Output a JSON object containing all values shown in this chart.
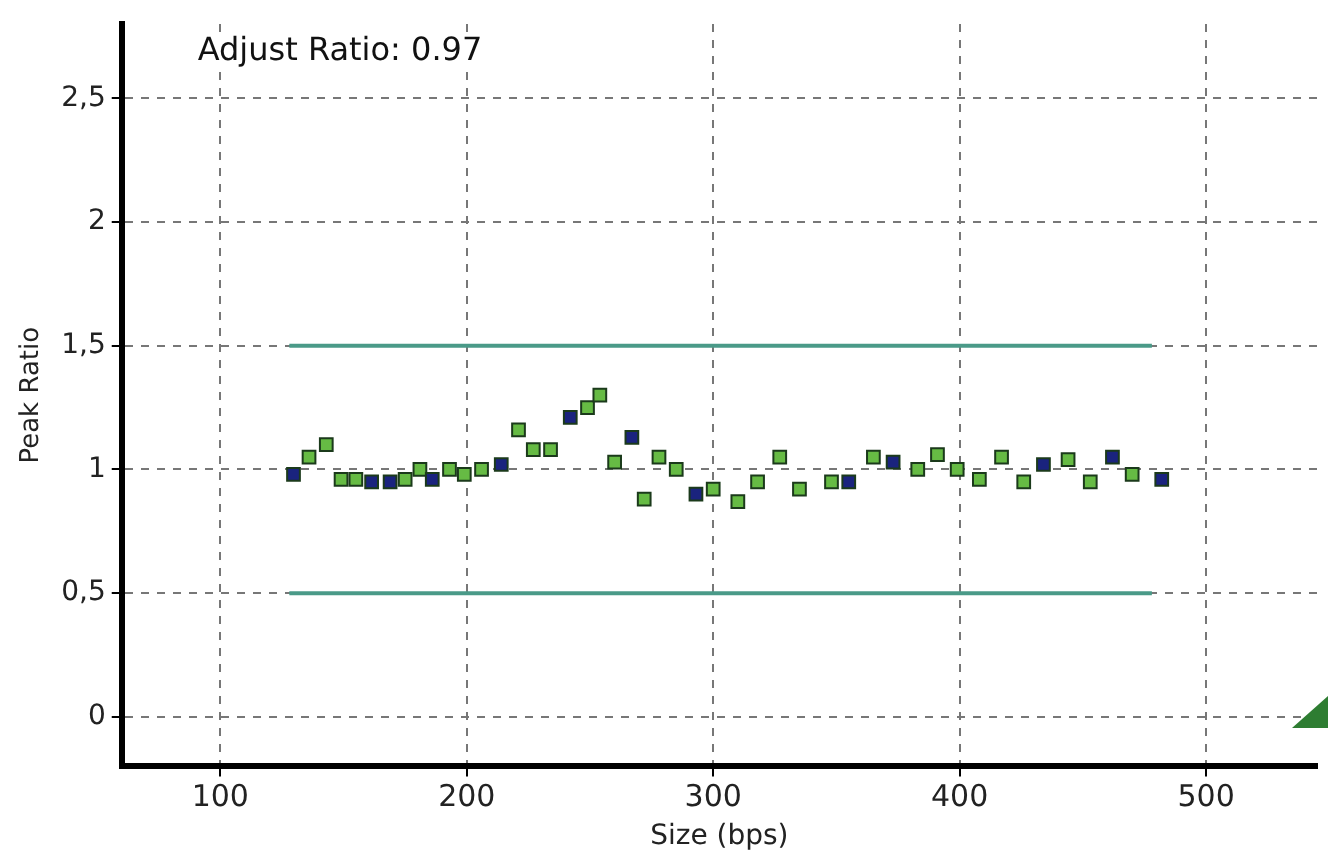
{
  "chart_data": {
    "type": "scatter",
    "xlabel": "Size (bps)",
    "ylabel": "Peak Ratio",
    "annotations": [
      "Adjust Ratio: 0.97"
    ],
    "xlim": [
      60,
      545
    ],
    "xticks": [
      100,
      200,
      300,
      400,
      500
    ],
    "ylim": [
      -0.2,
      2.8
    ],
    "yticks": [
      0,
      {
        "value": 0.5,
        "label": "0,5"
      },
      1,
      {
        "value": 1.5,
        "label": "1,5"
      },
      2,
      {
        "value": 2.5,
        "label": "2,5"
      }
    ],
    "grid": true,
    "marker": "square",
    "legend": false,
    "series": [
      {
        "type": "line",
        "marker": "none",
        "color": "#4a9a88",
        "x": [
          128,
          478
        ],
        "values": [
          1.5,
          1.5
        ]
      },
      {
        "type": "line",
        "marker": "none",
        "color": "#4a9a88",
        "x": [
          128,
          478
        ],
        "values": [
          0.5,
          0.5
        ]
      },
      {
        "color": "#1a237e",
        "x": [
          129.7,
          161.4,
          168.9,
          186,
          214,
          242,
          267,
          293,
          355,
          373,
          434,
          462,
          482
        ],
        "values": [
          0.98,
          0.95,
          0.95,
          0.96,
          1.02,
          1.21,
          1.13,
          0.9,
          0.95,
          1.03,
          1.02,
          1.05,
          0.96
        ]
      },
      {
        "color": "#66bb44",
        "x": [
          136,
          143,
          149,
          155,
          175,
          181,
          193,
          199,
          206,
          221,
          227,
          234,
          249,
          254,
          260,
          272,
          278,
          285,
          300,
          310,
          318,
          327,
          335,
          348,
          365,
          383,
          391,
          399,
          408,
          417,
          426,
          444,
          453,
          470
        ],
        "values": [
          1.05,
          1.1,
          0.96,
          0.96,
          0.96,
          1.0,
          1.0,
          0.98,
          1.0,
          1.16,
          1.08,
          1.08,
          1.25,
          1.3,
          1.03,
          0.88,
          1.05,
          1.0,
          0.92,
          0.87,
          0.95,
          1.05,
          0.92,
          0.95,
          1.05,
          1.0,
          1.06,
          1.0,
          0.96,
          1.05,
          0.95,
          1.04,
          0.95,
          0.98
        ]
      }
    ]
  }
}
